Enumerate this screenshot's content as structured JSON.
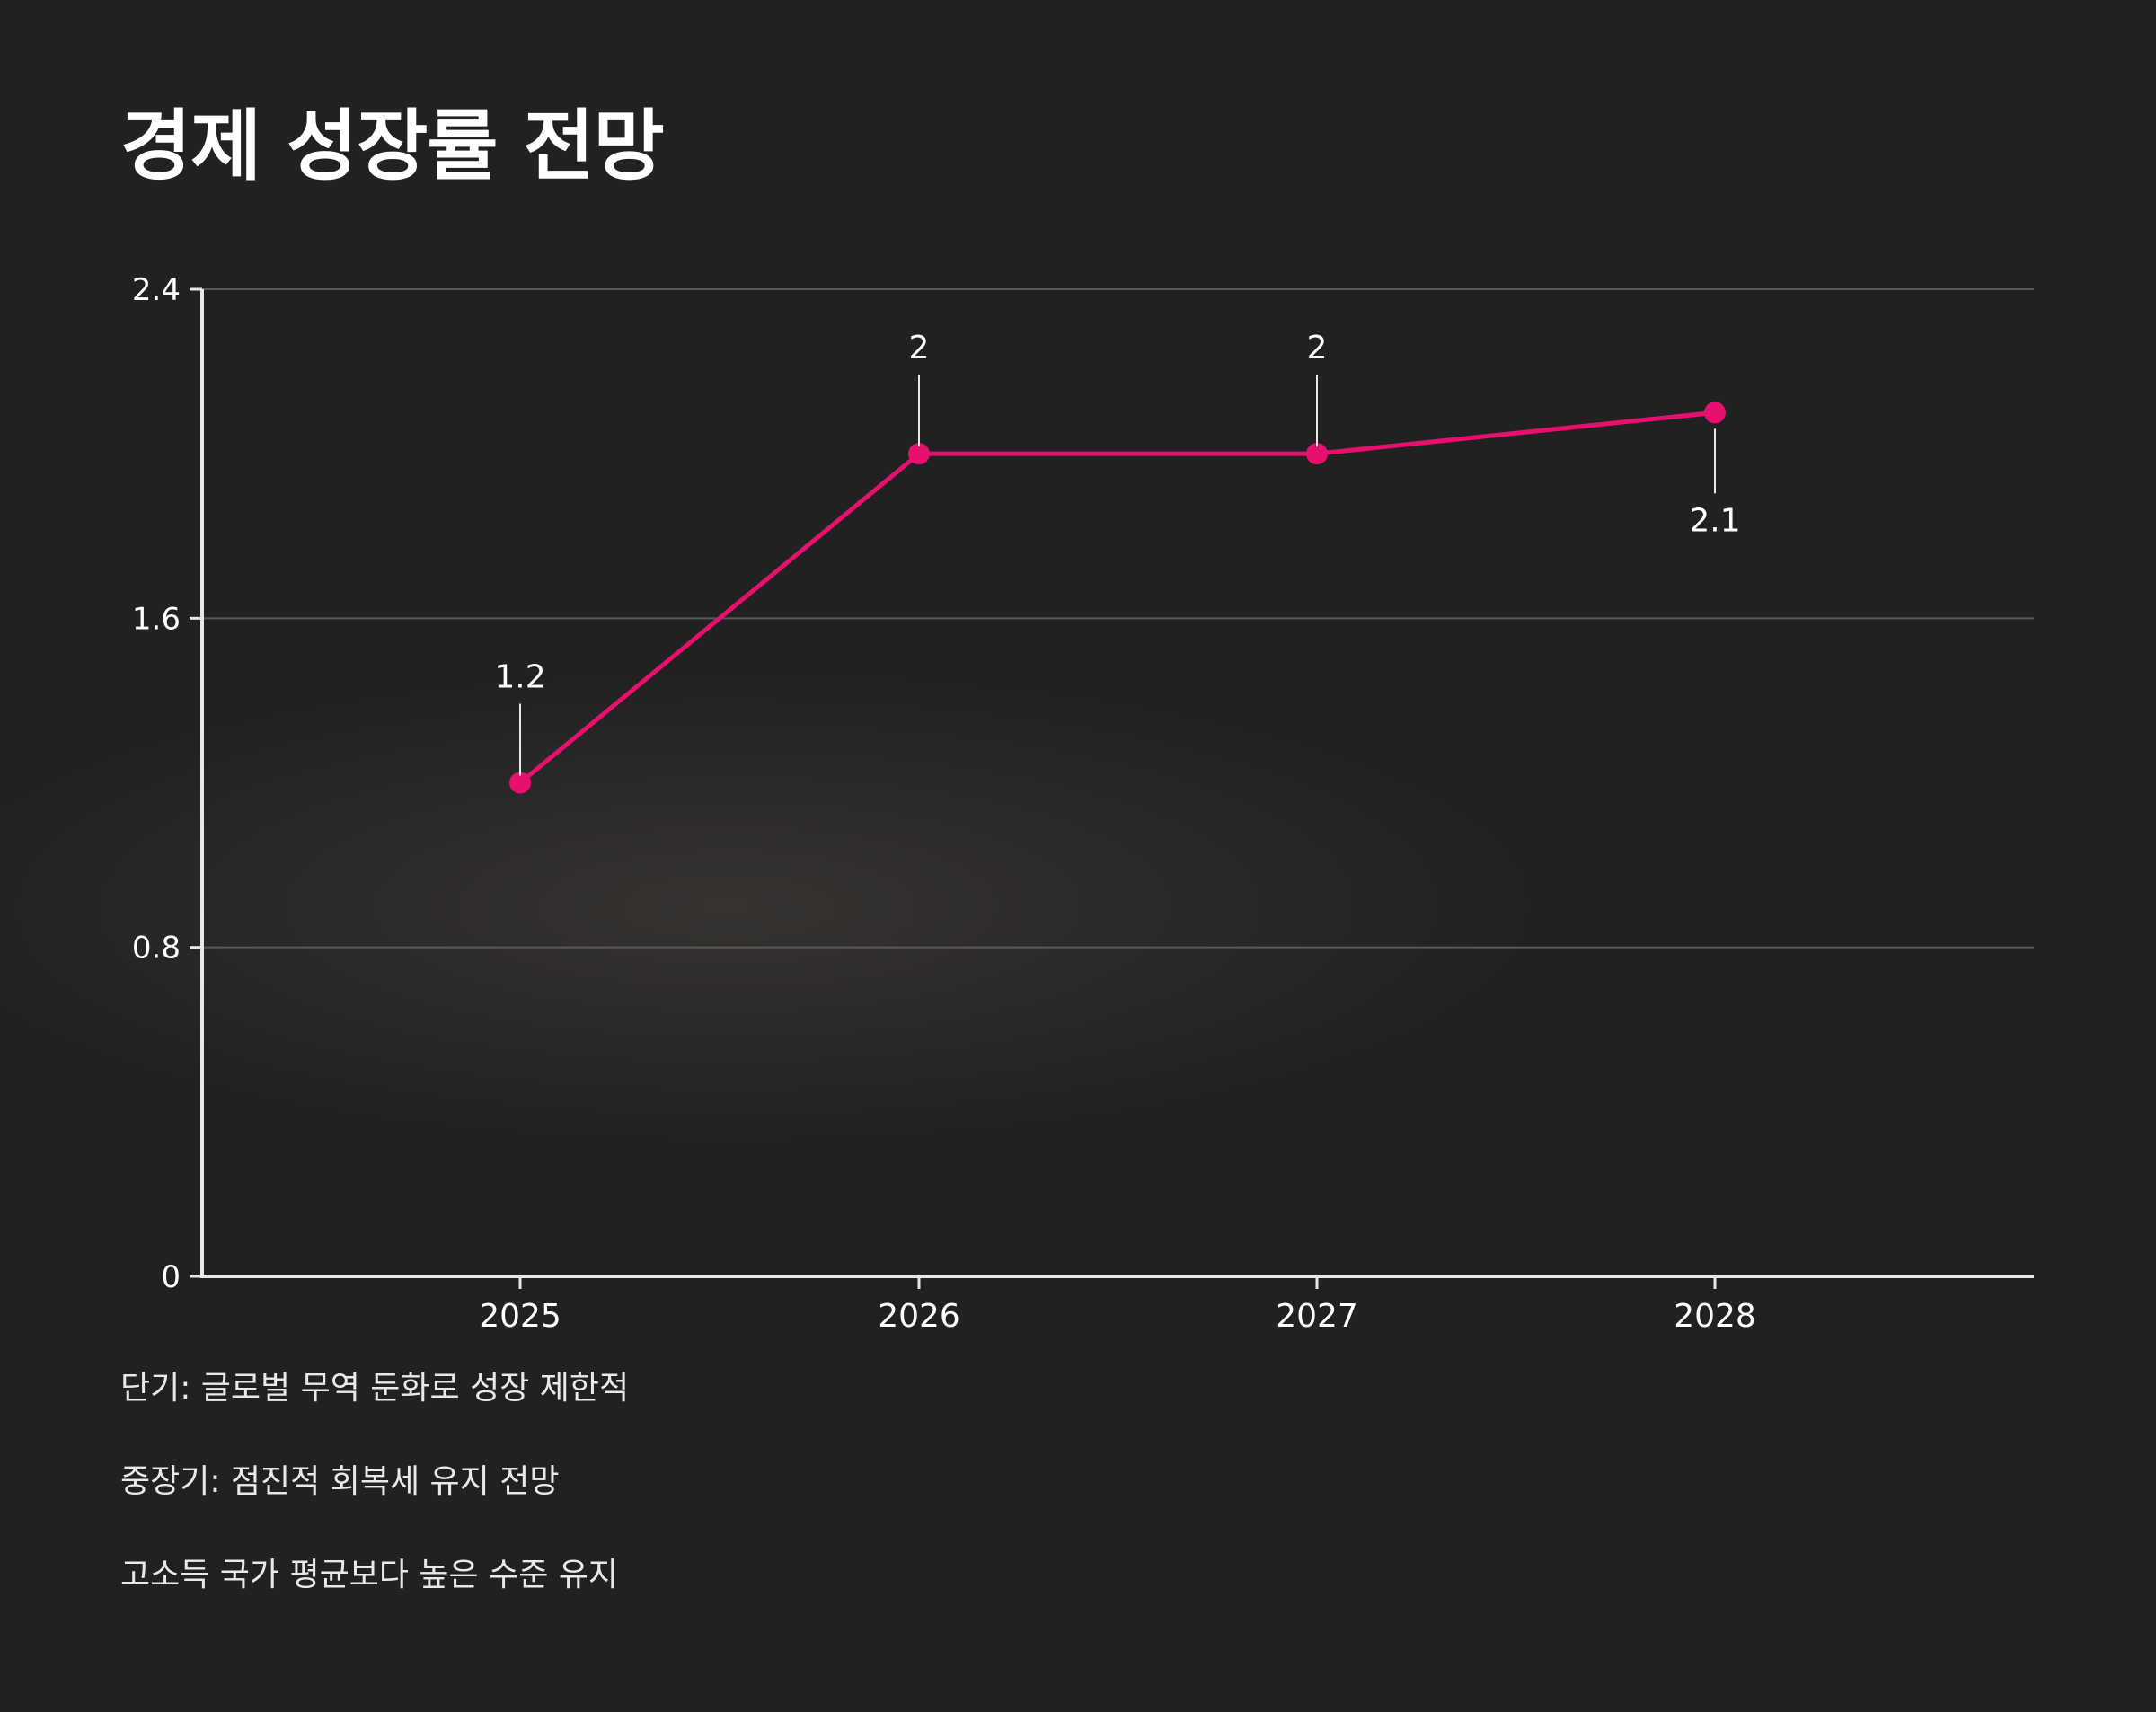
{
  "title": "경제 성장률 전망",
  "notes": [
    "단기: 글로벌 무역 둔화로 성장 제한적",
    "중장기: 점진적 회복세 유지 전망",
    "고소득 국가 평균보다 높은 수준 유지"
  ],
  "colors": {
    "background": "#222121",
    "line": "#e8106e",
    "axis": "#e8e8e8",
    "grid": "#5a5959",
    "text": "#ffffff"
  },
  "chart_data": {
    "type": "line",
    "x": [
      "2025",
      "2026",
      "2027",
      "2028"
    ],
    "series": [
      {
        "values": [
          1.2,
          2,
          2,
          2.1
        ],
        "labels": [
          "1.2",
          "2",
          "2",
          "2.1"
        ]
      }
    ],
    "ylim": [
      0,
      2.4
    ],
    "yticks": [
      "0",
      "0.8",
      "1.6",
      "2.4"
    ],
    "xlabel": "",
    "ylabel": "",
    "grid": true,
    "legend": "none"
  }
}
